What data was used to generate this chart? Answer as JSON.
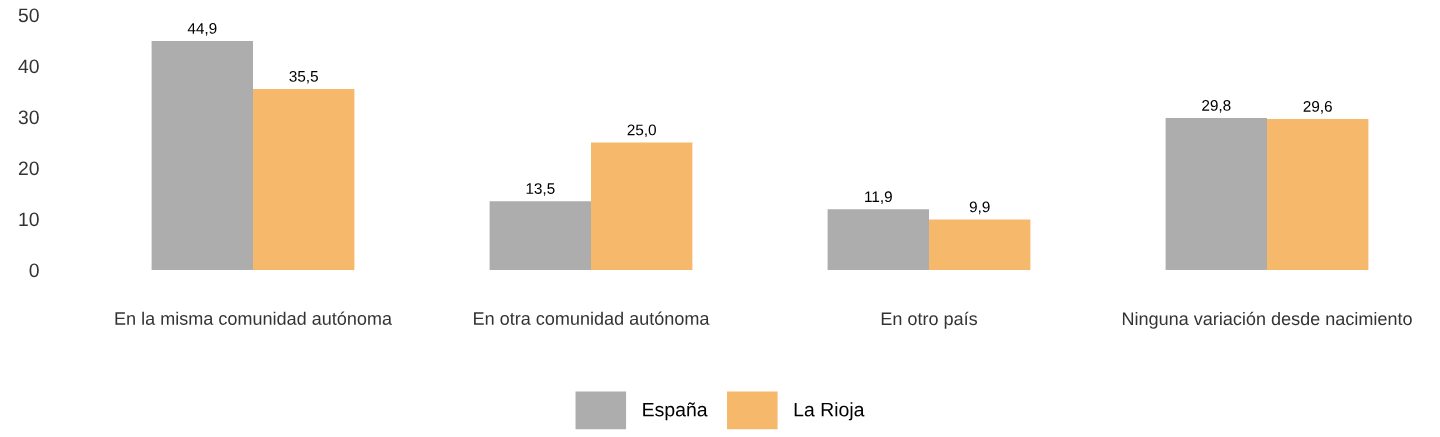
{
  "chart_data": {
    "type": "bar",
    "categories": [
      "En la misma comunidad autónoma",
      "En otra comunidad autónoma",
      "En otro país",
      "Ninguna variación desde nacimiento"
    ],
    "series": [
      {
        "name": "España",
        "color": "#adadad",
        "values": [
          44.9,
          13.5,
          11.9,
          29.8
        ],
        "value_labels": [
          "44,9",
          "13,5",
          "11,9",
          "29,8"
        ]
      },
      {
        "name": "La Rioja",
        "color": "#f6b96b",
        "values": [
          35.5,
          25.0,
          9.9,
          29.6
        ],
        "value_labels": [
          "35,5",
          "25,0",
          "9,9",
          "29,6"
        ]
      }
    ],
    "ylim": [
      0,
      50
    ],
    "yticks": [
      0,
      10,
      20,
      30,
      40,
      50
    ],
    "grid": false,
    "legend": "bottom"
  }
}
